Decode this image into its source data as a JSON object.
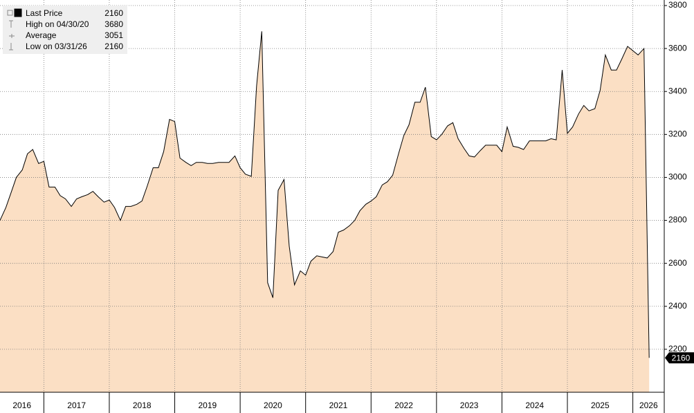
{
  "chart_data": {
    "type": "area",
    "legend": [
      {
        "label": "Last Price",
        "value": 2160
      },
      {
        "label": "High on 04/30/20",
        "value": 3680
      },
      {
        "label": "Average",
        "value": 3051
      },
      {
        "label": "Low on 03/31/26",
        "value": 2160
      }
    ],
    "x": [
      2016.33,
      2016.42,
      2016.5,
      2016.58,
      2016.67,
      2016.75,
      2016.83,
      2016.92,
      2017,
      2017.08,
      2017.17,
      2017.25,
      2017.33,
      2017.42,
      2017.5,
      2017.58,
      2017.67,
      2017.75,
      2017.83,
      2017.92,
      2018,
      2018.08,
      2018.17,
      2018.25,
      2018.33,
      2018.42,
      2018.5,
      2018.58,
      2018.67,
      2018.75,
      2018.83,
      2018.92,
      2019,
      2019.08,
      2019.17,
      2019.25,
      2019.33,
      2019.42,
      2019.5,
      2019.58,
      2019.67,
      2019.75,
      2019.83,
      2019.92,
      2020,
      2020.08,
      2020.17,
      2020.25,
      2020.33,
      2020.42,
      2020.5,
      2020.58,
      2020.67,
      2020.75,
      2020.83,
      2020.92,
      2021,
      2021.08,
      2021.17,
      2021.25,
      2021.33,
      2021.42,
      2021.5,
      2021.58,
      2021.67,
      2021.75,
      2021.83,
      2021.92,
      2022,
      2022.08,
      2022.17,
      2022.25,
      2022.33,
      2022.42,
      2022.5,
      2022.58,
      2022.67,
      2022.75,
      2022.83,
      2022.92,
      2023,
      2023.08,
      2023.17,
      2023.25,
      2023.33,
      2023.42,
      2023.5,
      2023.58,
      2023.67,
      2023.75,
      2023.83,
      2023.92,
      2024,
      2024.08,
      2024.17,
      2024.25,
      2024.33,
      2024.42,
      2024.5,
      2024.58,
      2024.67,
      2024.75,
      2024.83,
      2024.92,
      2025,
      2025.08,
      2025.17,
      2025.25,
      2025.33,
      2025.42,
      2025.5,
      2025.58,
      2025.67,
      2025.75,
      2025.83,
      2025.92,
      2026,
      2026.08,
      2026.17,
      2026.25
    ],
    "series": [
      {
        "color": "#fbdfc4",
        "values": [
          2800,
          2860,
          2930,
          3000,
          3035,
          3110,
          3130,
          3065,
          3075,
          2955,
          2955,
          2915,
          2900,
          2865,
          2900,
          2910,
          2920,
          2935,
          2910,
          2885,
          2895,
          2860,
          2800,
          2865,
          2865,
          2875,
          2890,
          2960,
          3045,
          3045,
          3120,
          3270,
          3260,
          3090,
          3070,
          3055,
          3070,
          3070,
          3065,
          3065,
          3070,
          3070,
          3070,
          3100,
          3045,
          3015,
          3005,
          3425,
          3680,
          2510,
          2440,
          2940,
          2990,
          2680,
          2500,
          2565,
          2545,
          2610,
          2635,
          2630,
          2625,
          2655,
          2745,
          2755,
          2775,
          2800,
          2845,
          2875,
          2890,
          2910,
          2965,
          2980,
          3010,
          3110,
          3195,
          3245,
          3350,
          3350,
          3420,
          3190,
          3175,
          3200,
          3240,
          3255,
          3180,
          3135,
          3100,
          3095,
          3125,
          3150,
          3150,
          3150,
          3120,
          3235,
          3145,
          3140,
          3130,
          3170,
          3170,
          3170,
          3170,
          3180,
          3175,
          3500,
          3205,
          3235,
          3295,
          3335,
          3310,
          3320,
          3405,
          3570,
          3500,
          3500,
          3550,
          3610,
          3590,
          3570,
          3600,
          2160
        ]
      }
    ],
    "xlim": [
      2016.33,
      2026.48
    ],
    "xticks": [
      2016,
      2017,
      2018,
      2019,
      2020,
      2021,
      2022,
      2023,
      2024,
      2025,
      2026
    ],
    "ylim": [
      2000,
      3800
    ],
    "yticks": [
      2200,
      2400,
      2600,
      2800,
      3000,
      3200,
      3400,
      3600,
      3800
    ],
    "grid": true
  }
}
